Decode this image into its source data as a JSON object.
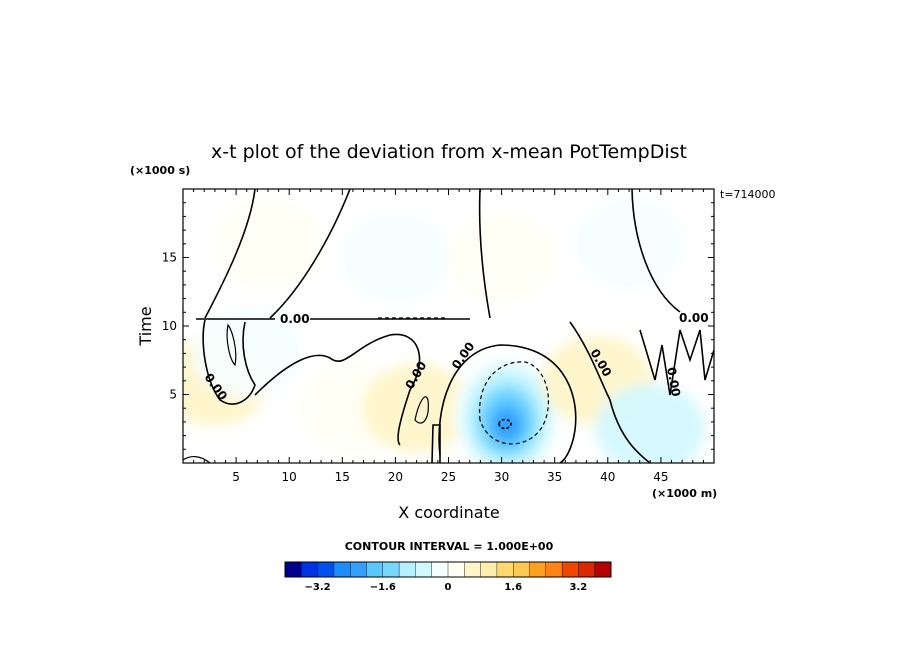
{
  "chart_data": {
    "type": "heatmap",
    "title": "x-t plot of the deviation from x-mean PotTempDist",
    "xlabel": "X coordinate",
    "ylabel": "Time",
    "x_unit_label": "(×1000 m)",
    "y_unit_label": "(×1000 s)",
    "time_stamp": "t=714000",
    "contour_interval_text": "CONTOUR INTERVAL = 1.000E+00",
    "contour_label": "0.00",
    "xlim": [
      0,
      50
    ],
    "ylim": [
      0,
      20
    ],
    "x_ticks": [
      5,
      10,
      15,
      20,
      25,
      30,
      35,
      40,
      45
    ],
    "y_ticks": [
      5,
      10,
      15
    ],
    "colorbar": {
      "min": -4.0,
      "max": 4.0,
      "step": 0.4,
      "tick_values": [
        -3.2,
        -1.6,
        0,
        1.6,
        3.2
      ],
      "tick_labels": [
        "−3.2",
        "−1.6",
        "0",
        "1.6",
        "3.2"
      ]
    },
    "features": [
      {
        "name": "upper-left-warm",
        "x": 8,
        "y": 16,
        "value": 0.2
      },
      {
        "name": "upper-cold-band",
        "x": 20,
        "y": 15,
        "value": -0.3
      },
      {
        "name": "upper-middle-warm",
        "x": 30,
        "y": 15,
        "value": 0.3
      },
      {
        "name": "upper-right-cold",
        "x": 42,
        "y": 16,
        "value": -0.3
      },
      {
        "name": "lower-left-warm",
        "x": 3,
        "y": 6,
        "value": 0.6
      },
      {
        "name": "lower-left-cold",
        "x": 6,
        "y": 8,
        "value": -0.4
      },
      {
        "name": "lower-middle-warm",
        "x": 16,
        "y": 4,
        "value": 0.3
      },
      {
        "name": "narrow-warm-streak",
        "x": 22,
        "y": 4,
        "value": 0.6
      },
      {
        "name": "central-cold-vortex",
        "x": 30.5,
        "y": 3,
        "value": -2.4
      },
      {
        "name": "right-warm-tongue",
        "x": 39,
        "y": 6,
        "value": 0.4
      },
      {
        "name": "lower-right-cold",
        "x": 44,
        "y": 2.5,
        "value": -0.5
      }
    ]
  },
  "colors": {
    "background": "#ffffff",
    "zero_band": "#ffffff",
    "axis": "#000000",
    "palette_cold": [
      "#00008b",
      "#0014c8",
      "#0032e6",
      "#0050f0",
      "#0a6ef5",
      "#1e8cfa",
      "#32a0ff",
      "#46b4ff",
      "#5ac8ff",
      "#78d7ff",
      "#96e6ff",
      "#b4f0ff",
      "#d2f8ff",
      "#e6fcff",
      "#f5feff"
    ],
    "palette_warm": [
      "#fffff5",
      "#fffbe0",
      "#fff5c8",
      "#ffefaa",
      "#ffe68c",
      "#ffd96e",
      "#ffc850",
      "#ffb432",
      "#ffa01e",
      "#ff8214",
      "#ff640a",
      "#f04600",
      "#dc2800",
      "#c81400",
      "#b40000"
    ]
  }
}
